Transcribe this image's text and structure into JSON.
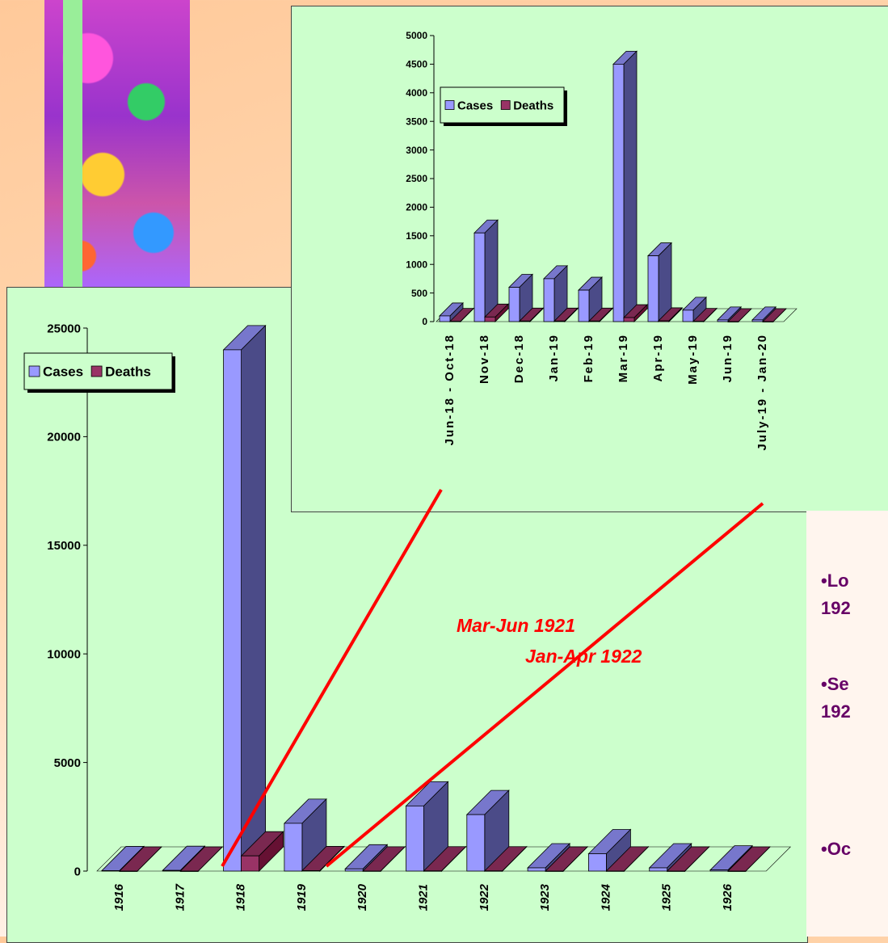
{
  "colors": {
    "cases_front": "#9999ff",
    "cases_side": "#4b4b88",
    "cases_top": "#7777cc",
    "deaths_front": "#993366",
    "deaths_side": "#661133",
    "deaths_top": "#7a2850",
    "callout_line": "#ff0000",
    "callout_text": "#ff0000",
    "note_text": "#660066",
    "panel_bg": "#ccffcc"
  },
  "chart_data": [
    {
      "type": "bar",
      "chart_id": "annual",
      "categories": [
        "1916",
        "1917",
        "1918",
        "1919",
        "1920",
        "1921",
        "1922",
        "1923",
        "1924",
        "1925",
        "1926"
      ],
      "series": [
        {
          "name": "Cases",
          "values": [
            20,
            30,
            24000,
            2200,
            100,
            3000,
            2600,
            150,
            800,
            150,
            50
          ]
        },
        {
          "name": "Deaths",
          "values": [
            0,
            0,
            700,
            20,
            5,
            10,
            10,
            2,
            5,
            2,
            0
          ]
        }
      ],
      "yticks": [
        0,
        5000,
        10000,
        15000,
        20000,
        25000
      ],
      "ylim": [
        0,
        25000
      ],
      "legend": [
        "Cases",
        "Deaths"
      ],
      "legend_position": "top-left",
      "annotations": [
        "Mar-Jun 1921",
        "Jan-Apr 1922"
      ]
    },
    {
      "type": "bar",
      "chart_id": "monthly",
      "categories": [
        "Jun-18 - Oct-18",
        "Nov-18",
        "Dec-18",
        "Jan-19",
        "Feb-19",
        "Mar-19",
        "Apr-19",
        "May-19",
        "Jun-19",
        "July-19 - Jan-20"
      ],
      "series": [
        {
          "name": "Cases",
          "values": [
            100,
            1550,
            600,
            750,
            550,
            4500,
            1150,
            200,
            30,
            30
          ]
        },
        {
          "name": "Deaths",
          "values": [
            5,
            80,
            10,
            10,
            10,
            70,
            15,
            5,
            0,
            0
          ]
        }
      ],
      "yticks": [
        0,
        500,
        1000,
        1500,
        2000,
        2500,
        3000,
        3500,
        4000,
        4500,
        5000
      ],
      "ylim": [
        0,
        5000
      ],
      "legend": [
        "Cases",
        "Deaths"
      ],
      "legend_position": "top-left"
    }
  ],
  "notes": [
    "•Lo\n192",
    "•Se\n192",
    "•Oc"
  ]
}
